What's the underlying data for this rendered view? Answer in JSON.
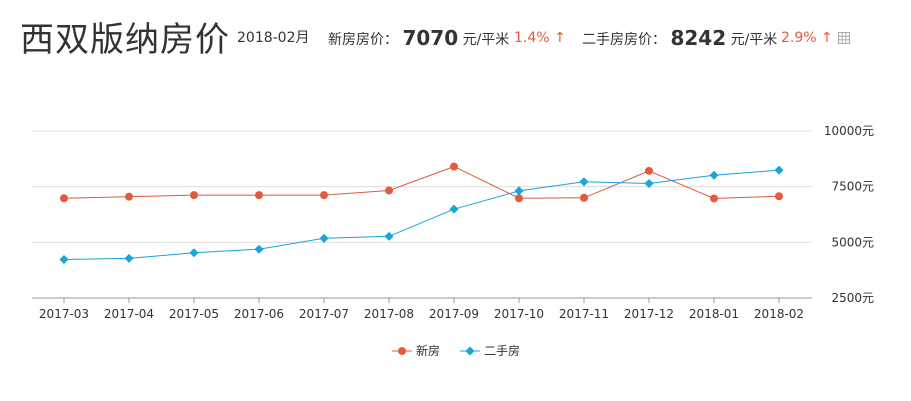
{
  "header": {
    "title": "西双版纳房价",
    "period": "2018-02月",
    "new_label": "新房房价：",
    "new_value": "7070",
    "new_unit": "元/平米",
    "new_change": "1.4%",
    "new_arrow": "↑",
    "used_label": "二手房房价：",
    "used_value": "8242",
    "used_unit": "元/平米",
    "used_change": "2.9%",
    "used_arrow": "↑",
    "grid_icon": "grid-icon"
  },
  "colors": {
    "new": "#e25b3f",
    "used": "#19a4da",
    "grid": "#dddddd",
    "axis": "#999999"
  },
  "chart_data": {
    "type": "line",
    "categories": [
      "2017-03",
      "2017-04",
      "2017-05",
      "2017-06",
      "2017-07",
      "2017-08",
      "2017-09",
      "2017-10",
      "2017-11",
      "2017-12",
      "2018-01",
      "2018-02"
    ],
    "series": [
      {
        "name": "新房",
        "color": "#e25b3f",
        "marker": "circle",
        "values": [
          6980,
          7050,
          7120,
          7120,
          7120,
          7330,
          8400,
          6980,
          7000,
          8210,
          6970,
          7070
        ]
      },
      {
        "name": "二手房",
        "color": "#19a4da",
        "marker": "diamond",
        "values": [
          4230,
          4280,
          4530,
          4690,
          5180,
          5270,
          6490,
          7310,
          7720,
          7640,
          8010,
          8242
        ]
      }
    ],
    "ylim": [
      2500,
      10000
    ],
    "yticks": [
      2500,
      5000,
      7500,
      10000
    ],
    "ytick_labels": [
      "2500元",
      "5000元",
      "7500元",
      "10000元"
    ],
    "y_axis_position": "right",
    "grid": true,
    "legend_position": "bottom-center"
  }
}
